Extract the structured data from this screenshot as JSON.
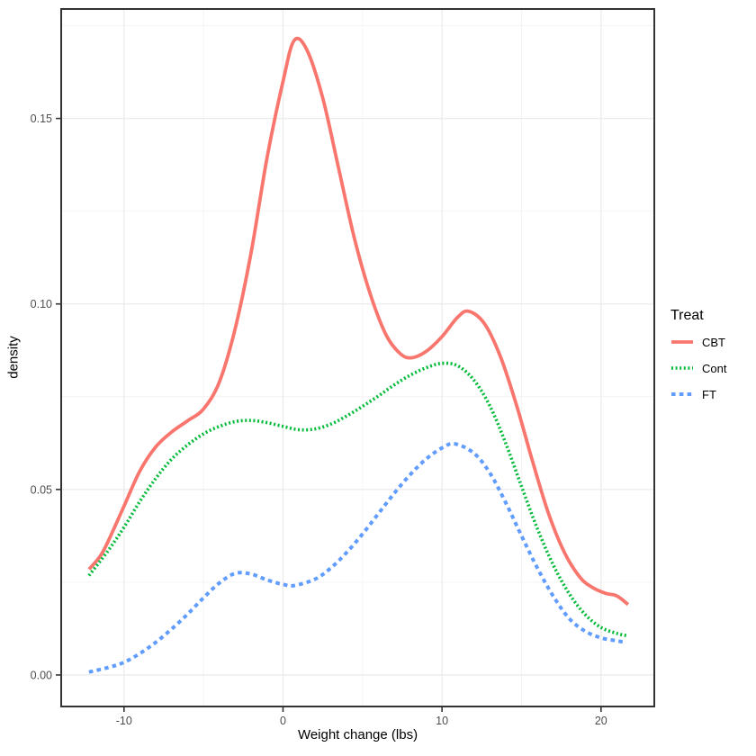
{
  "chart_data": {
    "type": "line",
    "subtype": "density-curves",
    "title": "",
    "xlabel": "Weight change (lbs)",
    "ylabel": "density",
    "xlim": [
      -13.95,
      23.35
    ],
    "ylim": [
      -0.0085,
      0.1795
    ],
    "grid": "on",
    "x_ticks": {
      "values": [
        -10,
        0,
        10,
        20
      ],
      "labels": [
        "-10",
        "0",
        "10",
        "20"
      ]
    },
    "x_minor": [
      -5,
      5,
      15
    ],
    "y_ticks": {
      "values": [
        0.0,
        0.05,
        0.1,
        0.15
      ],
      "labels": [
        "0.00",
        "0.05",
        "0.10",
        "0.15"
      ]
    },
    "y_minor": [
      0.025,
      0.075,
      0.125,
      0.175
    ],
    "legend": {
      "title": "Treat",
      "position": "right"
    },
    "style": {
      "panel_border": "#333333",
      "grid_major": "#ebebeb",
      "grid_minor": "#f4f4f4",
      "tick_label_color": "#4d4d4d",
      "tick_mark_color": "#333333",
      "background": "#ffffff"
    },
    "series": [
      {
        "name": "CBT",
        "color": "#F8766D",
        "linetype": "solid",
        "x": [
          -12.2,
          -11.5,
          -11,
          -10,
          -9,
          -8,
          -7,
          -6,
          -5,
          -4,
          -3,
          -2,
          -1,
          0,
          0.7,
          1.5,
          2.5,
          3.5,
          4.5,
          5.5,
          6.5,
          7.4,
          8.1,
          9,
          10,
          11,
          11.7,
          12.7,
          13.7,
          14.7,
          15.7,
          16.7,
          17.7,
          18.7,
          19.5,
          20.3,
          21,
          21.7
        ],
        "y": [
          0.0285,
          0.032,
          0.036,
          0.0455,
          0.055,
          0.0615,
          0.0655,
          0.0685,
          0.0717,
          0.079,
          0.0935,
          0.114,
          0.1395,
          0.16,
          0.171,
          0.1685,
          0.1555,
          0.1365,
          0.1175,
          0.1025,
          0.0915,
          0.0865,
          0.0855,
          0.0872,
          0.0912,
          0.0965,
          0.098,
          0.0945,
          0.0855,
          0.0725,
          0.0575,
          0.0435,
          0.033,
          0.0262,
          0.0235,
          0.022,
          0.0213,
          0.019
        ]
      },
      {
        "name": "Cont",
        "color": "#00BA38",
        "linetype": "dotted",
        "x": [
          -12.2,
          -11,
          -10,
          -9,
          -8,
          -7,
          -6,
          -5,
          -4,
          -3,
          -2,
          -1,
          0,
          1,
          2,
          3,
          4,
          5,
          6,
          7,
          8,
          9,
          10,
          11,
          12,
          13,
          14,
          15,
          16,
          17,
          18,
          19,
          20,
          21,
          21.6
        ],
        "y": [
          0.0268,
          0.0335,
          0.0398,
          0.0468,
          0.053,
          0.0582,
          0.062,
          0.065,
          0.067,
          0.0683,
          0.0686,
          0.068,
          0.067,
          0.0661,
          0.0663,
          0.0676,
          0.0698,
          0.0724,
          0.0752,
          0.0782,
          0.0808,
          0.0828,
          0.084,
          0.0833,
          0.0795,
          0.0726,
          0.0625,
          0.0508,
          0.0394,
          0.0296,
          0.0219,
          0.0163,
          0.0128,
          0.0112,
          0.0106
        ]
      },
      {
        "name": "FT",
        "color": "#619CFF",
        "linetype": "dashed",
        "x": [
          -12.2,
          -11,
          -10,
          -9,
          -8,
          -7,
          -6,
          -5,
          -4,
          -3,
          -2,
          -1,
          0,
          0.7,
          2,
          3,
          4,
          5,
          6,
          7,
          8,
          9,
          10,
          10.8,
          12,
          13,
          14,
          15,
          16,
          17,
          18,
          19,
          20,
          21,
          21.5
        ],
        "y": [
          0.0008,
          0.002,
          0.0034,
          0.0058,
          0.0088,
          0.0124,
          0.0164,
          0.0208,
          0.0248,
          0.0274,
          0.0272,
          0.0256,
          0.0244,
          0.0241,
          0.0258,
          0.0288,
          0.033,
          0.038,
          0.0435,
          0.049,
          0.054,
          0.0582,
          0.0612,
          0.0623,
          0.0598,
          0.0545,
          0.0465,
          0.0375,
          0.0288,
          0.0212,
          0.0152,
          0.0118,
          0.01,
          0.0092,
          0.0088
        ]
      }
    ]
  }
}
